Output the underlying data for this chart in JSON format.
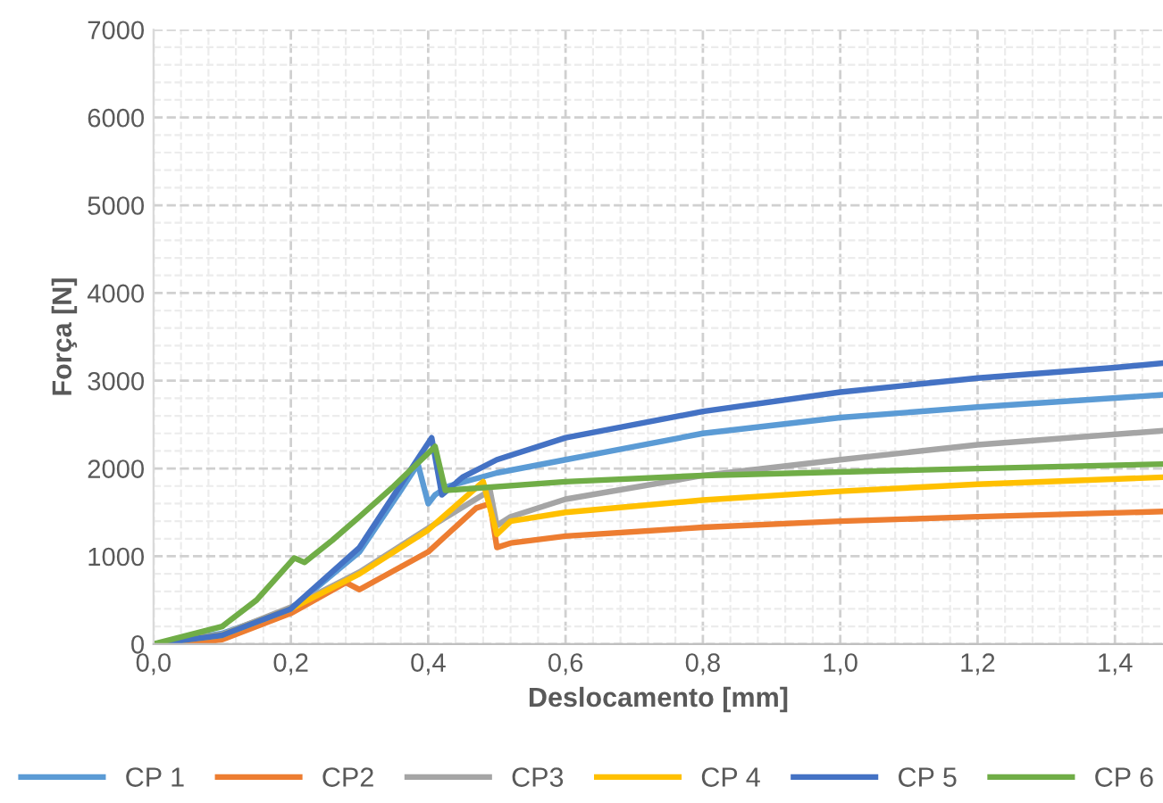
{
  "chart_data": {
    "type": "line",
    "xlabel": "Deslocamento [mm]",
    "ylabel": "Força [N]",
    "xlim": [
      0,
      1.47
    ],
    "ylim": [
      0,
      7000
    ],
    "xticks": [
      {
        "value": 0,
        "label": "0,0"
      },
      {
        "value": 0.2,
        "label": "0,2"
      },
      {
        "value": 0.4,
        "label": "0,4"
      },
      {
        "value": 0.6,
        "label": "0,6"
      },
      {
        "value": 0.8,
        "label": "0,8"
      },
      {
        "value": 1.0,
        "label": "1,0"
      },
      {
        "value": 1.2,
        "label": "1,2"
      },
      {
        "value": 1.4,
        "label": "1,4"
      }
    ],
    "yticks": [
      0,
      1000,
      2000,
      3000,
      4000,
      5000,
      6000,
      7000
    ],
    "grid": true,
    "legend": "bottom",
    "marker": "none",
    "line_style": "solid",
    "series": [
      {
        "name": "CP 1",
        "color": "#5b9bd5",
        "x": [
          0,
          0.1,
          0.2,
          0.3,
          0.36,
          0.385,
          0.4,
          0.41,
          0.43,
          0.5,
          0.6,
          0.8,
          1.0,
          1.2,
          1.47
        ],
        "values": [
          0,
          120,
          400,
          1050,
          1750,
          2050,
          1600,
          1700,
          1800,
          1950,
          2100,
          2400,
          2580,
          2700,
          2840
        ]
      },
      {
        "name": "CP2",
        "color": "#ed7d31",
        "x": [
          0,
          0.05,
          0.1,
          0.2,
          0.28,
          0.3,
          0.4,
          0.47,
          0.49,
          0.5,
          0.52,
          0.6,
          0.8,
          1.0,
          1.2,
          1.47
        ],
        "values": [
          0,
          0,
          50,
          350,
          700,
          620,
          1050,
          1550,
          1600,
          1100,
          1150,
          1230,
          1330,
          1400,
          1450,
          1510
        ]
      },
      {
        "name": "CP3",
        "color": "#a5a5a5",
        "x": [
          0,
          0.1,
          0.2,
          0.3,
          0.4,
          0.49,
          0.5,
          0.52,
          0.6,
          0.8,
          1.0,
          1.2,
          1.47
        ],
        "values": [
          0,
          110,
          420,
          820,
          1320,
          1750,
          1350,
          1450,
          1650,
          1920,
          2100,
          2270,
          2430
        ]
      },
      {
        "name": "CP 4",
        "color": "#ffc000",
        "x": [
          0,
          0.1,
          0.2,
          0.3,
          0.4,
          0.48,
          0.5,
          0.52,
          0.6,
          0.8,
          1.0,
          1.2,
          1.47
        ],
        "values": [
          0,
          100,
          400,
          800,
          1300,
          1850,
          1250,
          1400,
          1500,
          1640,
          1740,
          1820,
          1900
        ]
      },
      {
        "name": "CP 5",
        "color": "#4472c4",
        "x": [
          0,
          0.1,
          0.2,
          0.3,
          0.405,
          0.42,
          0.45,
          0.5,
          0.6,
          0.8,
          1.0,
          1.2,
          1.4,
          1.47
        ],
        "values": [
          0,
          100,
          400,
          1100,
          2350,
          1700,
          1900,
          2100,
          2350,
          2650,
          2870,
          3030,
          3150,
          3200
        ]
      },
      {
        "name": "CP 6",
        "color": "#70ad47",
        "x": [
          0,
          0.1,
          0.15,
          0.205,
          0.22,
          0.26,
          0.3,
          0.35,
          0.41,
          0.425,
          0.6,
          0.8,
          1.0,
          1.2,
          1.47
        ],
        "values": [
          0,
          200,
          500,
          980,
          930,
          1180,
          1450,
          1800,
          2250,
          1750,
          1850,
          1920,
          1960,
          2000,
          2050
        ]
      }
    ]
  }
}
